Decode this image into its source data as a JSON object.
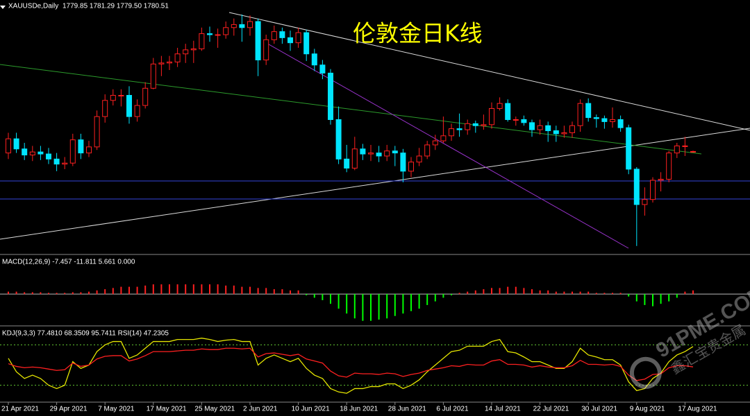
{
  "header": {
    "symbol": "XAUUSDe,Daily",
    "quote": "1779.85 1781.29 1779.50 1780.51"
  },
  "watermark": {
    "site": "91PME.COM",
    "brand": "鑫汇宝贵金属"
  },
  "chart_data": [
    {
      "type": "candlestick",
      "title": "伦敦金日K线",
      "categories": [
        "21 Apr 2021",
        null,
        null,
        null,
        null,
        null,
        "29 Apr 2021",
        null,
        null,
        null,
        null,
        null,
        "7 May 2021",
        null,
        null,
        null,
        null,
        null,
        "17 May 2021",
        null,
        null,
        null,
        null,
        null,
        "25 May 2021",
        null,
        null,
        null,
        null,
        null,
        "2 Jun 2021",
        null,
        null,
        null,
        null,
        null,
        "10 Jun 2021",
        null,
        null,
        null,
        null,
        null,
        "18 Jun 2021",
        null,
        null,
        null,
        null,
        null,
        "28 Jun 2021",
        null,
        null,
        null,
        null,
        null,
        "6 Jul 2021",
        null,
        null,
        null,
        null,
        null,
        "14 Jul 2021",
        null,
        null,
        null,
        null,
        null,
        "22 Jul 2021",
        null,
        null,
        null,
        null,
        null,
        "30 Jul 2021",
        null,
        null,
        null,
        null,
        null,
        "9 Aug 2021",
        null,
        null,
        null,
        null,
        null,
        "17 Aug 2021",
        null
      ],
      "open": [
        1779,
        1793,
        1783,
        1777,
        1780,
        1778,
        1773,
        1768,
        1769,
        1792,
        1779,
        1785,
        1815,
        1831,
        1836,
        1836,
        1815,
        1826,
        1843,
        1867,
        1868,
        1869,
        1877,
        1881,
        1882,
        1897,
        1896,
        1896,
        1903,
        1906,
        1903,
        1909,
        1871,
        1891,
        1899,
        1893,
        1888,
        1898,
        1877,
        1866,
        1858,
        1812,
        1773,
        1764,
        1783,
        1778,
        1779,
        1776,
        1781,
        1779,
        1761,
        1770,
        1776,
        1787,
        1791,
        1796,
        1803,
        1802,
        1808,
        1806,
        1807,
        1823,
        1828,
        1812,
        1812,
        1809,
        1802,
        1806,
        1801,
        1798,
        1799,
        1806,
        1828,
        1814,
        1813,
        1810,
        1812,
        1804,
        1763,
        1728,
        1733,
        1752,
        1753,
        1779,
        1786,
        1779.85
      ],
      "high": [
        1799,
        1799,
        1789,
        1786,
        1786,
        1784,
        1779,
        1775,
        1798,
        1798,
        1791,
        1821,
        1837,
        1842,
        1842,
        1845,
        1832,
        1849,
        1873,
        1875,
        1875,
        1883,
        1887,
        1890,
        1903,
        1904,
        1902,
        1909,
        1912,
        1916,
        1915,
        1912,
        1896,
        1905,
        1903,
        1900,
        1903,
        1901,
        1882,
        1871,
        1862,
        1825,
        1787,
        1795,
        1788,
        1787,
        1786,
        1787,
        1786,
        1783,
        1775,
        1784,
        1791,
        1797,
        1815,
        1808,
        1818,
        1812,
        1811,
        1817,
        1829,
        1834,
        1832,
        1815,
        1816,
        1812,
        1812,
        1810,
        1806,
        1806,
        1810,
        1832,
        1833,
        1817,
        1816,
        1824,
        1816,
        1807,
        1765,
        1745,
        1755,
        1760,
        1781,
        1789,
        1795,
        1781.29
      ],
      "low": [
        1773,
        1779,
        1772,
        1771,
        1772,
        1768,
        1761,
        1763,
        1766,
        1773,
        1775,
        1782,
        1809,
        1826,
        1825,
        1808,
        1810,
        1823,
        1842,
        1855,
        1861,
        1864,
        1868,
        1868,
        1880,
        1889,
        1883,
        1892,
        1895,
        1889,
        1895,
        1855,
        1866,
        1887,
        1887,
        1880,
        1883,
        1870,
        1860,
        1852,
        1807,
        1768,
        1760,
        1762,
        1772,
        1771,
        1770,
        1771,
        1766,
        1750,
        1755,
        1766,
        1773,
        1782,
        1789,
        1791,
        1795,
        1797,
        1799,
        1802,
        1803,
        1821,
        1810,
        1806,
        1806,
        1795,
        1797,
        1790,
        1790,
        1794,
        1794,
        1800,
        1810,
        1804,
        1803,
        1804,
        1800,
        1758,
        1687,
        1717,
        1730,
        1741,
        1750,
        1774,
        1776,
        1779.5
      ],
      "close": [
        1793,
        1783,
        1777,
        1780,
        1778,
        1773,
        1768,
        1769,
        1792,
        1779,
        1785,
        1815,
        1831,
        1836,
        1836,
        1815,
        1826,
        1843,
        1867,
        1868,
        1869,
        1877,
        1881,
        1882,
        1897,
        1896,
        1896,
        1903,
        1906,
        1903,
        1909,
        1871,
        1891,
        1899,
        1893,
        1888,
        1898,
        1877,
        1866,
        1858,
        1812,
        1773,
        1764,
        1783,
        1778,
        1779,
        1776,
        1781,
        1779,
        1761,
        1770,
        1776,
        1787,
        1791,
        1796,
        1803,
        1802,
        1808,
        1806,
        1807,
        1823,
        1828,
        1812,
        1812,
        1809,
        1802,
        1806,
        1801,
        1798,
        1799,
        1806,
        1828,
        1814,
        1813,
        1810,
        1812,
        1804,
        1763,
        1728,
        1733,
        1752,
        1753,
        1779,
        1786,
        1786,
        1780.51
      ],
      "up_color": "#ff2020",
      "down_color": "#00e5ff",
      "ylim": [
        1680,
        1920
      ]
    },
    {
      "type": "bar",
      "title": "MACD(12,26,9) -7.457 -11.811 5.661 0.000",
      "values": [
        2,
        2,
        1.5,
        1.5,
        1.5,
        1,
        1,
        1,
        1.5,
        1.5,
        2,
        3,
        4,
        5,
        6,
        6,
        6,
        7,
        8,
        8,
        8,
        8,
        8,
        8,
        8,
        8,
        8,
        7,
        7,
        6,
        6,
        5,
        5,
        4,
        4,
        3,
        3,
        -1,
        -3,
        -5,
        -8,
        -12,
        -16,
        -20,
        -22,
        -22,
        -21,
        -20,
        -18,
        -16,
        -14,
        -12,
        -9,
        -6,
        -3,
        -1,
        1,
        2,
        3,
        4,
        5,
        5,
        6,
        6,
        5,
        4,
        3,
        3,
        2,
        2,
        2,
        2,
        2,
        1,
        1,
        1,
        1,
        -2,
        -6,
        -9,
        -10,
        -8,
        -6,
        -3,
        2,
        3
      ],
      "positive_color": "#ff2020",
      "negative_color": "#00ff00",
      "ylim": [
        -25,
        32
      ]
    },
    {
      "type": "line",
      "title": "KDJ(9,3,3) 77.4810 68.3509 95.7411 RSI(14) 47.2305",
      "series": [
        {
          "color": "#e6e600",
          "values": [
            60,
            40,
            30,
            35,
            30,
            20,
            15,
            20,
            55,
            45,
            50,
            70,
            80,
            85,
            85,
            60,
            65,
            75,
            85,
            85,
            85,
            88,
            88,
            88,
            90,
            88,
            85,
            87,
            88,
            85,
            85,
            50,
            60,
            65,
            60,
            55,
            60,
            45,
            35,
            30,
            15,
            10,
            8,
            15,
            15,
            18,
            18,
            22,
            22,
            15,
            20,
            28,
            40,
            50,
            60,
            70,
            72,
            78,
            78,
            78,
            85,
            88,
            70,
            68,
            62,
            55,
            55,
            50,
            45,
            45,
            55,
            75,
            65,
            62,
            58,
            58,
            50,
            25,
            12,
            15,
            30,
            38,
            55,
            65,
            70,
            77.481
          ]
        },
        {
          "color": "#ff2020",
          "values": [
            52,
            48,
            46,
            47,
            46,
            44,
            42,
            43,
            53,
            48,
            50,
            59,
            63,
            64,
            64,
            56,
            59,
            64,
            70,
            70,
            70,
            71,
            72,
            72,
            74,
            73,
            73,
            75,
            75,
            74,
            75,
            62,
            67,
            68,
            66,
            64,
            66,
            59,
            56,
            53,
            41,
            34,
            32,
            38,
            37,
            37,
            36,
            38,
            37,
            33,
            36,
            38,
            42,
            44,
            46,
            49,
            48,
            51,
            50,
            50,
            56,
            58,
            51,
            51,
            50,
            47,
            49,
            47,
            46,
            46,
            49,
            57,
            51,
            51,
            50,
            51,
            48,
            35,
            27,
            29,
            36,
            37,
            46,
            49,
            49,
            47.2305
          ]
        }
      ],
      "levels": [
        80,
        20
      ],
      "level_color": "#66cc33",
      "ylim": [
        0,
        100
      ]
    }
  ]
}
